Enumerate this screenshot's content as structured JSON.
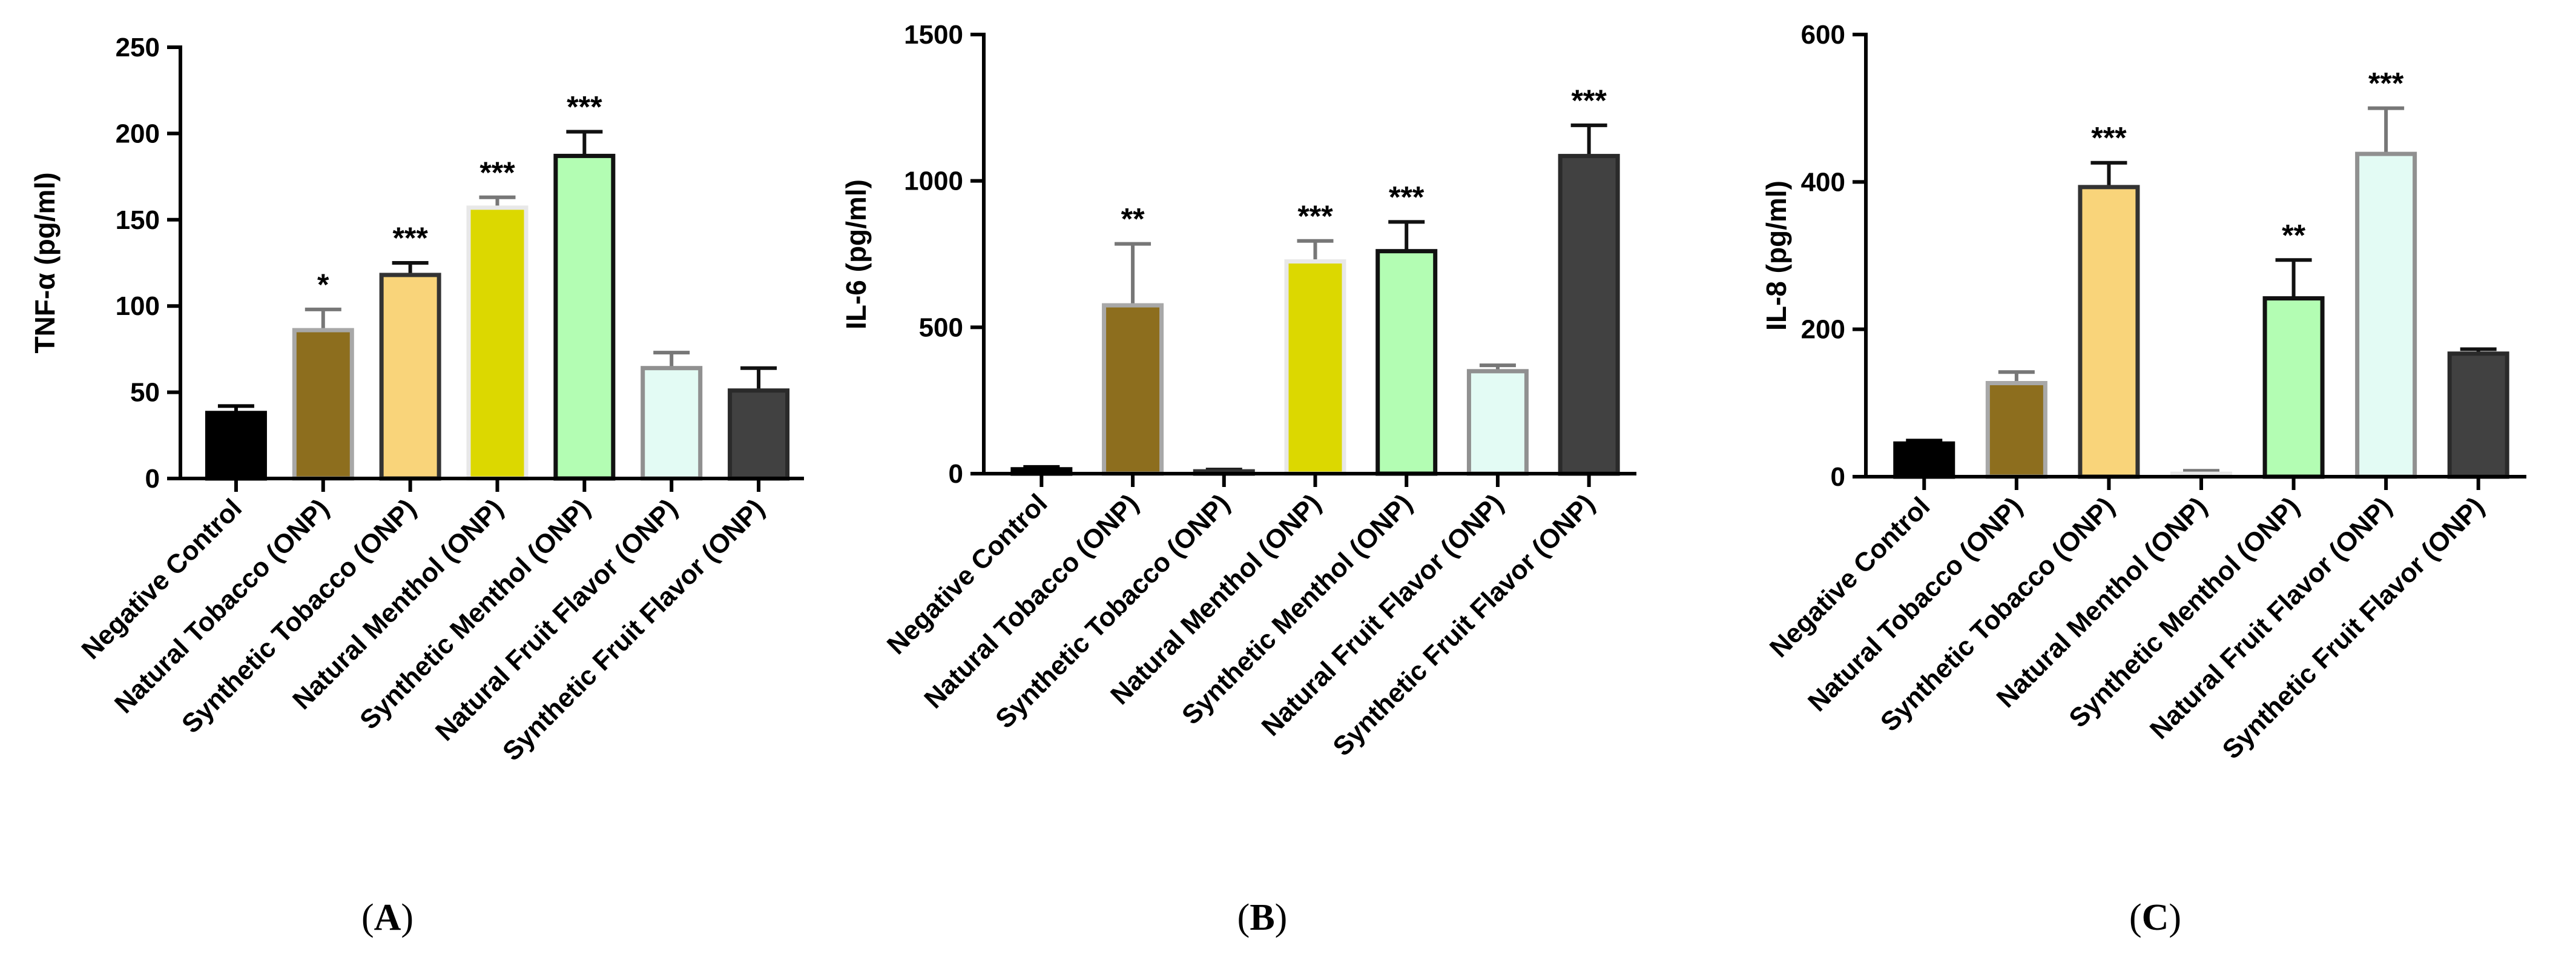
{
  "categories": [
    "Negative Control",
    "Natural Tobacco (ONP)",
    "Synthetic Tobacco (ONP)",
    "Natural Menthol (ONP)",
    "Synthetic Menthol (ONP)",
    "Natural Fruit Flavor (ONP)",
    "Synthetic Fruit Flavor (ONP)"
  ],
  "colors": {
    "fills": [
      "#000000",
      "#8d6e1e",
      "#f9d47a",
      "#dcd800",
      "#b3fdb3",
      "#e3fbf4",
      "#414141"
    ],
    "edges": [
      "#000000",
      "#a8a8a8",
      "#333333",
      "#e8e8e8",
      "#111111",
      "#909090",
      "#2a2a2a"
    ],
    "errors": [
      "#000000",
      "#777777",
      "#111111",
      "#777777",
      "#111111",
      "#777777",
      "#111111"
    ]
  },
  "chart_data": [
    {
      "type": "bar",
      "panel": "A",
      "ylabel": "TNF-α (pg/ml)",
      "ylim": [
        0,
        250
      ],
      "yticks": [
        0,
        50,
        100,
        150,
        200,
        250
      ],
      "tick_labels": [
        "0",
        "50",
        "100",
        "150",
        "200",
        "250"
      ],
      "category_labels": [
        "Negative Control",
        "Natural Tobacco (ONP)",
        "Synthetic  Tobacco (ONP)",
        "Natural Menthol (ONP)",
        "Synthetic Menthol (ONP)",
        "Natural Fruit Flavor (ONP)",
        "Synthetic Fruit Flavor (ONP)"
      ],
      "values": [
        38,
        86,
        118,
        157,
        187,
        64,
        51
      ],
      "errors": [
        4,
        12,
        7,
        6,
        14,
        9,
        13
      ],
      "significance": [
        "",
        "*",
        "***",
        "***",
        "***",
        "",
        ""
      ]
    },
    {
      "type": "bar",
      "panel": "B",
      "ylabel": "IL-6 (pg/ml)",
      "ylim": [
        0,
        1500
      ],
      "yticks": [
        0,
        500,
        1000,
        1500
      ],
      "tick_labels": [
        "0",
        "500",
        "1000",
        "1500"
      ],
      "category_labels": [
        "Negative Control",
        "Natural Tobacco (ONP)",
        "Synthetic Tobacco (ONP)",
        "Natural Menthol (ONP)",
        "Synthetic  Menthol (ONP)",
        "Natural Fruit Flavor (ONP)",
        "Synthetic Fruit Flavor (ONP)"
      ],
      "values": [
        15,
        575,
        8,
        725,
        760,
        350,
        1085
      ],
      "errors": [
        8,
        210,
        6,
        70,
        100,
        20,
        105
      ],
      "significance": [
        "",
        "**",
        "",
        "***",
        "***",
        "",
        "***"
      ]
    },
    {
      "type": "bar",
      "panel": "C",
      "ylabel": "IL-8 (pg/ml)",
      "ylim": [
        0,
        600
      ],
      "yticks": [
        0,
        200,
        400,
        600
      ],
      "tick_labels": [
        "0",
        "200",
        "400",
        "600"
      ],
      "category_labels": [
        "Negative Control",
        "Natural Tobacco (ONP)",
        "Synthetic Tobacco (ONP)",
        "Natural Menthol (ONP)",
        "Synthetic Menthol (ONP)",
        "Natural Fruit Flavor (ONP)",
        "Synthetic Fruit Flavor (ONP)"
      ],
      "values": [
        45,
        127,
        393,
        4,
        242,
        438,
        167
      ],
      "errors": [
        4,
        15,
        33,
        4,
        52,
        62,
        6
      ],
      "significance": [
        "",
        "",
        "***",
        "",
        "**",
        "***",
        ""
      ]
    }
  ]
}
